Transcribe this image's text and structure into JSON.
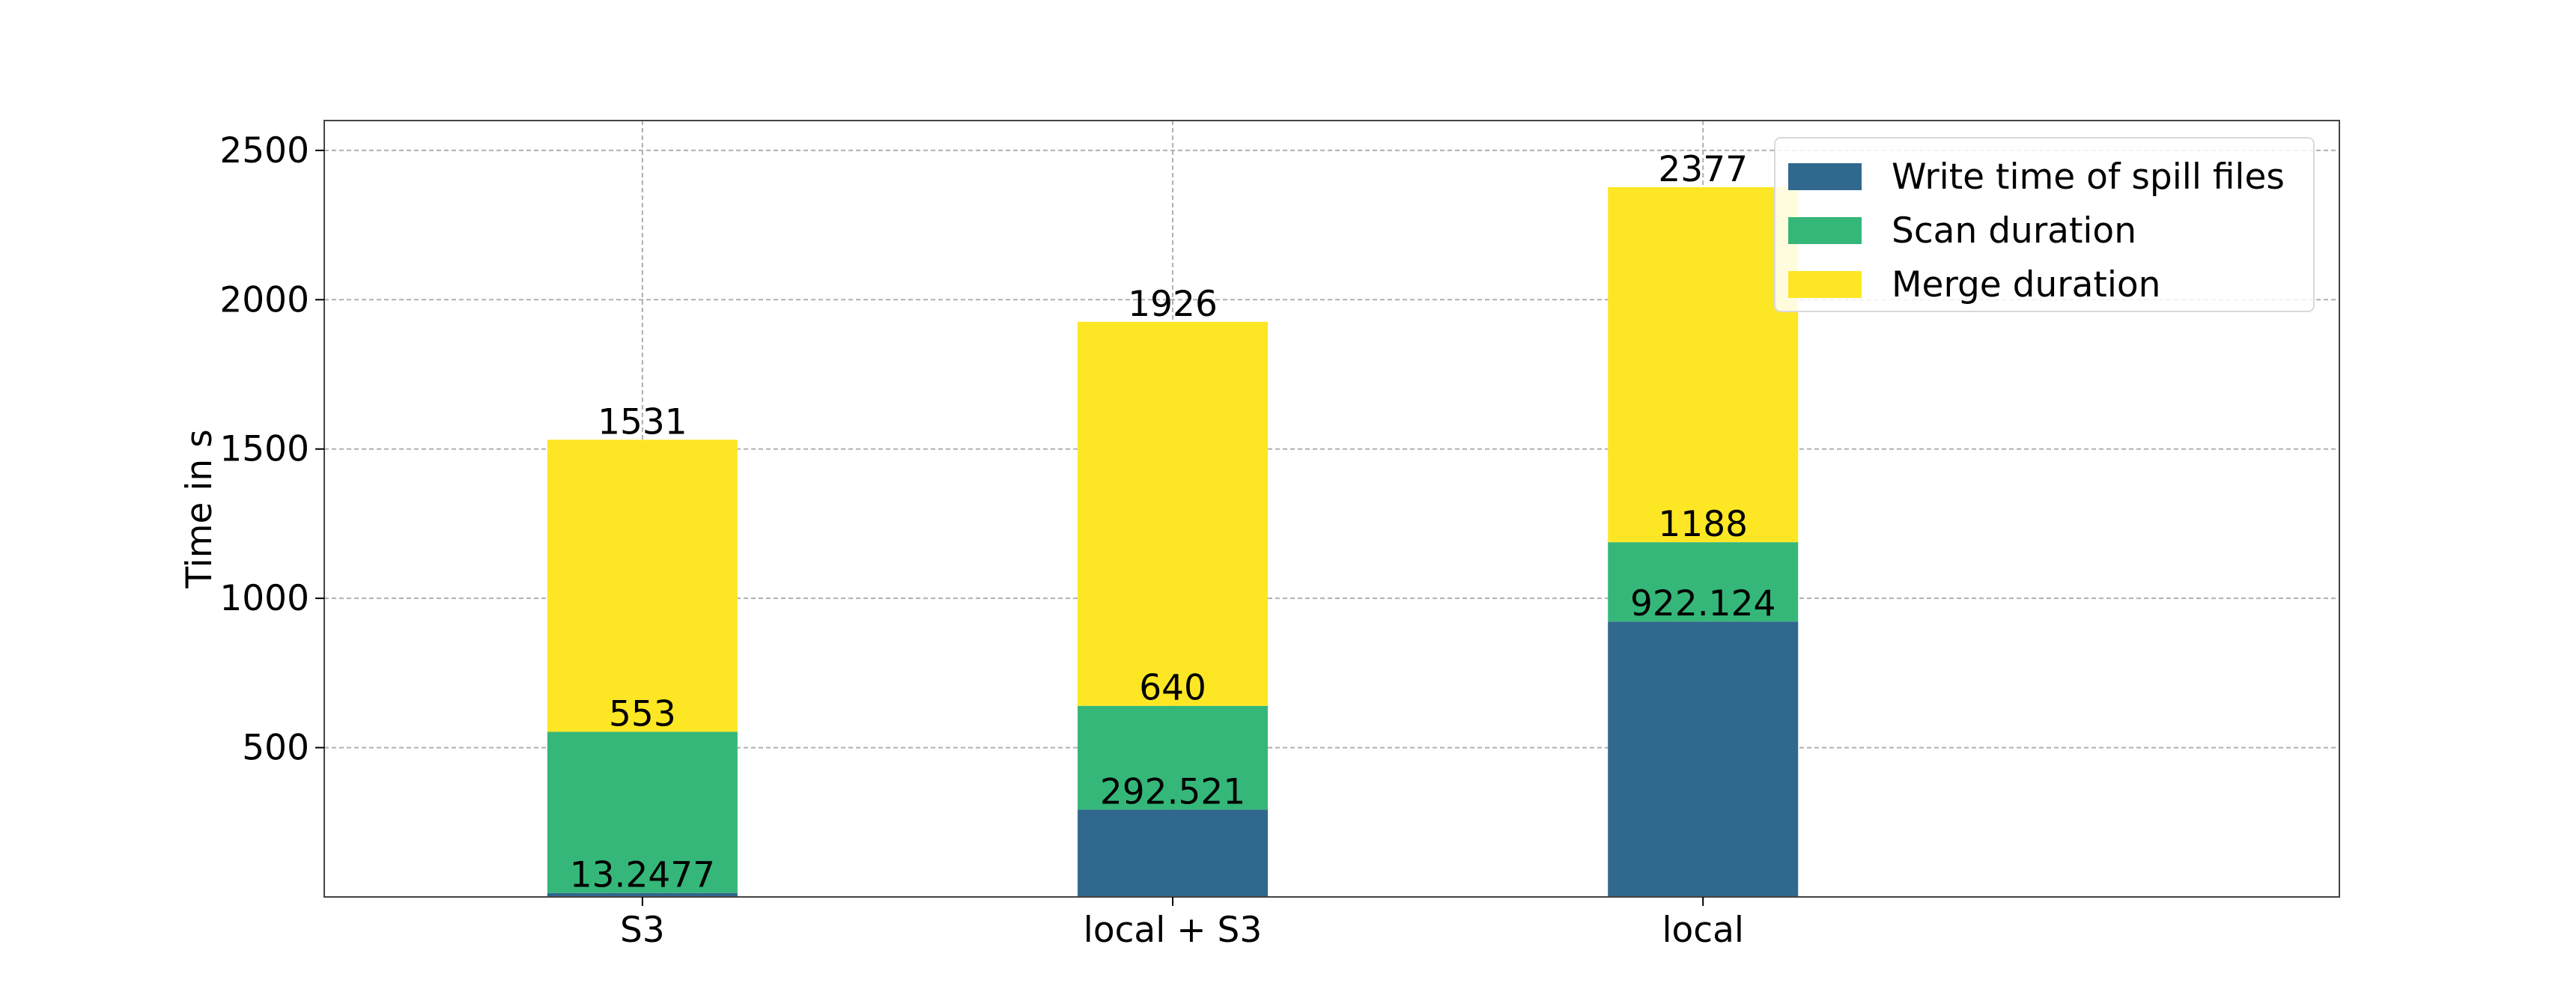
{
  "chart_data": {
    "type": "bar",
    "stacked": true,
    "ylabel": "Time in s",
    "xlabel": "",
    "title": "",
    "ylim": [
      0,
      2600
    ],
    "xlim": [
      -0.6,
      3.2
    ],
    "yticks": [
      500,
      1000,
      1500,
      2000,
      2500
    ],
    "grid": true,
    "legend_position": "top-right",
    "categories": [
      "S3",
      "local + S3",
      "local"
    ],
    "series": [
      {
        "name": "Write time of spill files",
        "color": "#31688e",
        "values": [
          13.2477,
          292.521,
          922.124
        ],
        "labels": [
          "13.2477",
          "292.521",
          "922.124"
        ]
      },
      {
        "name": "Scan duration",
        "color": "#35b779",
        "values": [
          539.7523,
          347.479,
          265.876
        ],
        "labels": [
          "553",
          "640",
          "1188"
        ]
      },
      {
        "name": "Merge duration",
        "color": "#fde725",
        "values": [
          978,
          1286,
          1189
        ],
        "labels": [
          "1531",
          "1926",
          "2377"
        ]
      }
    ]
  }
}
